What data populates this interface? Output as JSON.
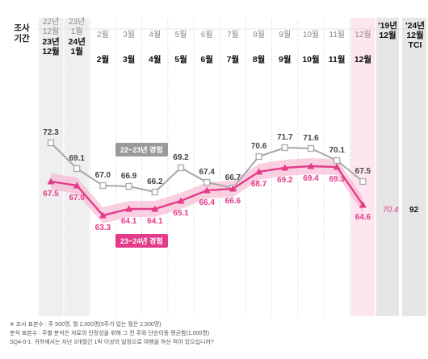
{
  "header": {
    "axis_title": "조사\n기간",
    "columns": [
      {
        "top": "22년",
        "bottom": "12월",
        "top2": "23년",
        "bottom2": "12월"
      },
      {
        "top": "23년",
        "bottom": "1월",
        "top2": "24년",
        "bottom2": "1월"
      },
      {
        "top": "2월",
        "bottom": "2월"
      },
      {
        "top": "3월",
        "bottom": "3월"
      },
      {
        "top": "4월",
        "bottom": "4월"
      },
      {
        "top": "5월",
        "bottom": "5월"
      },
      {
        "top": "6월",
        "bottom": "6월"
      },
      {
        "top": "7월",
        "bottom": "7월"
      },
      {
        "top": "8월",
        "bottom": "8월"
      },
      {
        "top": "9월",
        "bottom": "9월"
      },
      {
        "top": "10월",
        "bottom": "10월"
      },
      {
        "top": "11월",
        "bottom": "11월"
      },
      {
        "top": "12월",
        "bottom": "12월"
      }
    ],
    "extra1": "'19년\n12월",
    "extra2": "'24년\n12월\nTCI"
  },
  "extra_values": {
    "v2019": "70.4",
    "tci": "92"
  },
  "colors": {
    "grey_line": "#a8a8a8",
    "pink_line": "#e33b8a",
    "pink_band": "#f5a9c8",
    "highlight_col": "#efefef",
    "extra_col": "#e6e6e6",
    "dec_col": "#fde6ef"
  },
  "chart_data": {
    "type": "line",
    "categories": [
      "12월",
      "1월",
      "2월",
      "3월",
      "4월",
      "5월",
      "6월",
      "7월",
      "8월",
      "9월",
      "10월",
      "11월",
      "12월"
    ],
    "series": [
      {
        "name": "22~23년 경험",
        "values": [
          72.3,
          69.1,
          67.0,
          66.9,
          66.2,
          69.2,
          67.4,
          66.7,
          70.6,
          71.7,
          71.6,
          70.1,
          67.5
        ]
      },
      {
        "name": "23~24년 경험",
        "values": [
          67.5,
          67.0,
          63.3,
          64.1,
          64.1,
          65.1,
          66.4,
          66.6,
          68.7,
          69.2,
          69.4,
          69.3,
          64.6
        ]
      }
    ],
    "value_labels": {
      "grey": [
        "72.3",
        "69.1",
        "67.0",
        "66.9",
        "66.2",
        "69.2",
        "67.4",
        "66.7",
        "70.6",
        "71.7",
        "71.6",
        "70.1",
        "67.5"
      ],
      "pink": [
        "67.5",
        "67.0",
        "63.3",
        "64.1",
        "64.1",
        "65.1",
        "66.4",
        "66.6",
        "68.7",
        "69.2",
        "69.4",
        "69.3",
        "64.6"
      ]
    },
    "ylim": [
      61,
      75
    ],
    "grid": false
  },
  "footnotes": [
    "※ 조사 표본수 : 주 500명, 월 2,000명(5주가 있는 월은 2,500명)",
    "분석 표본수 : 주별 분석은 자료의 안정성을 위해 그 전 주와 단순이동 평균함(1,000명)",
    "SQ4-0-1. 귀하께서는 지난 3개월간 1박 이상의 일정으로 여행을 하신 적이 있으십니까?"
  ]
}
